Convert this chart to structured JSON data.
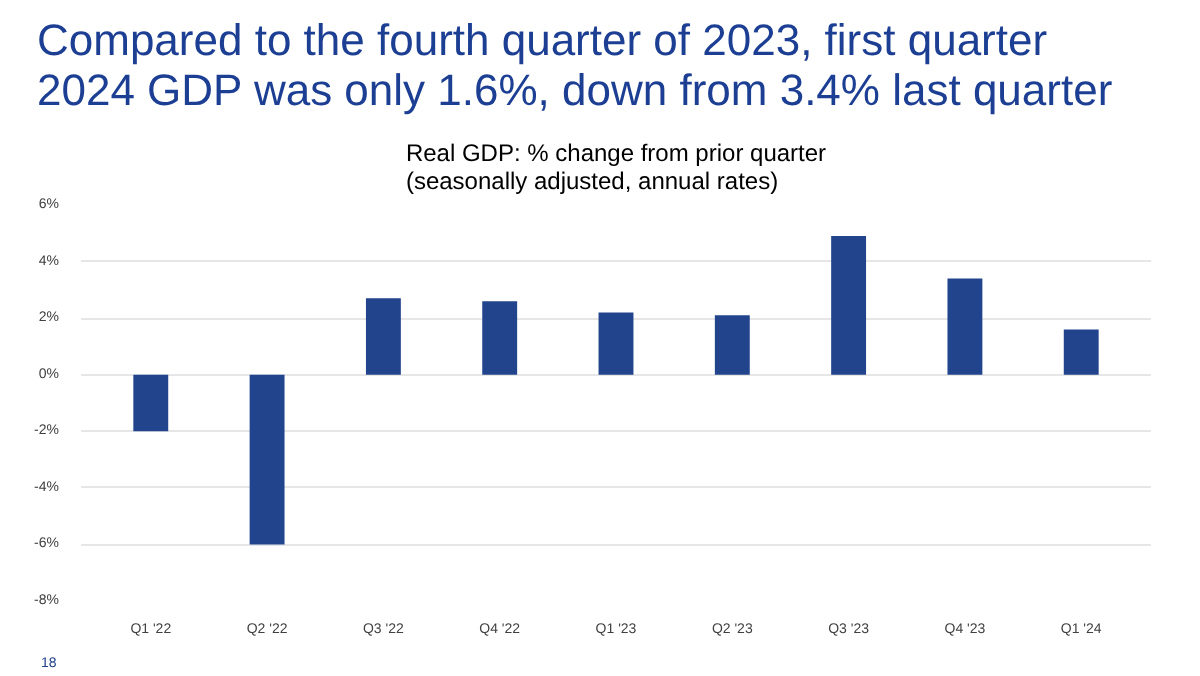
{
  "chart_data": {
    "type": "bar",
    "title": "Compared to the fourth quarter of 2023, first quarter\n2024 GDP was only 1.6%, down from 3.4% last quarter",
    "subtitle": "Real GDP: % change from prior quarter\n(seasonally adjusted, annual rates)",
    "categories": [
      "Q1 '22",
      "Q2 '22",
      "Q3 '22",
      "Q4 '22",
      "Q1 '23",
      "Q2 '23",
      "Q3 '23",
      "Q4 '23",
      "Q1 '24"
    ],
    "values": [
      -2.0,
      -6.0,
      2.7,
      2.6,
      2.2,
      2.1,
      4.9,
      3.4,
      1.6
    ],
    "color": "#21448c",
    "ylim": [
      -8,
      6
    ],
    "yticks": [
      {
        "value": -8,
        "label": "-8%"
      },
      {
        "value": -6,
        "label": "-6%"
      },
      {
        "value": -4,
        "label": "-4%"
      },
      {
        "value": -2,
        "label": "-2%"
      },
      {
        "value": 0,
        "label": "0%"
      },
      {
        "value": 2,
        "label": "2%"
      },
      {
        "value": 4,
        "label": "4%"
      },
      {
        "value": 6,
        "label": "6%"
      }
    ],
    "grid": "y",
    "annotations": [
      "18"
    ]
  }
}
